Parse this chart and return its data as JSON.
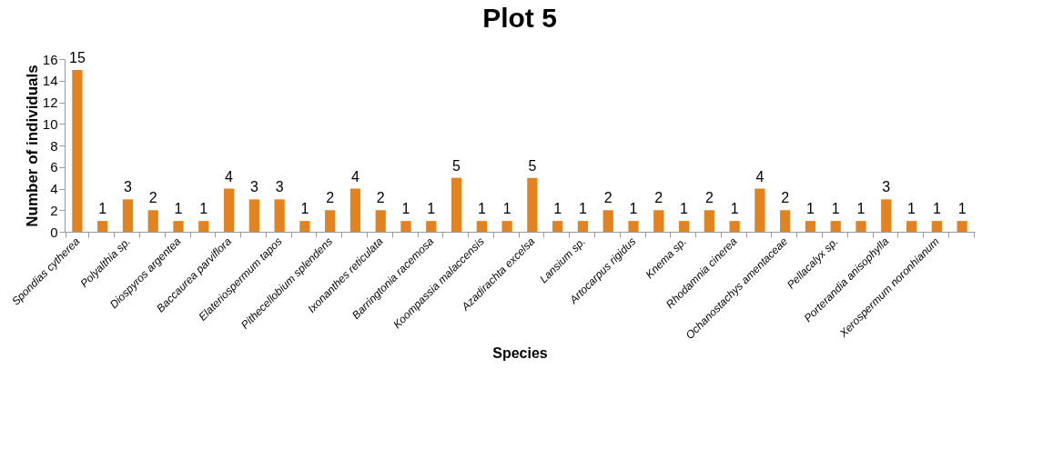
{
  "chart_data": {
    "type": "bar",
    "title": "Plot 5",
    "xlabel": "Species",
    "ylabel": "Number of individuals",
    "categories": [
      "Spondias cytherea",
      null,
      "Polyalthia sp.",
      null,
      "Diospyros argentea",
      null,
      "Baccaurea parviflora",
      null,
      "Elateriospermum tapos",
      null,
      "Pithecellobium splendens",
      null,
      "Ixonanthes reticulata",
      null,
      "Barringtonia racemosa",
      null,
      "Koompassia malaccensis",
      null,
      "Azadirachta excelsa",
      null,
      "Lansium sp.",
      null,
      "Artocarpus rigidus",
      null,
      "Knema sp.",
      null,
      "Rhodamnia cinerea",
      null,
      "Ochanostachys amentaceae",
      null,
      "Pellacalyx sp.",
      null,
      "Porterandia anisophylla",
      null,
      "Xerospermum noronhianum",
      null
    ],
    "values": [
      15,
      1,
      3,
      2,
      1,
      1,
      4,
      3,
      3,
      1,
      2,
      4,
      2,
      1,
      1,
      5,
      1,
      1,
      5,
      1,
      1,
      2,
      1,
      2,
      1,
      2,
      1,
      4,
      2,
      1,
      1,
      1,
      3,
      1,
      1,
      1
    ],
    "color": "#e2831f",
    "ylim": [
      0,
      16
    ],
    "yticks": [
      0,
      2,
      4,
      6,
      8,
      10,
      12,
      14,
      16
    ],
    "grid": false,
    "data_labels": true
  }
}
